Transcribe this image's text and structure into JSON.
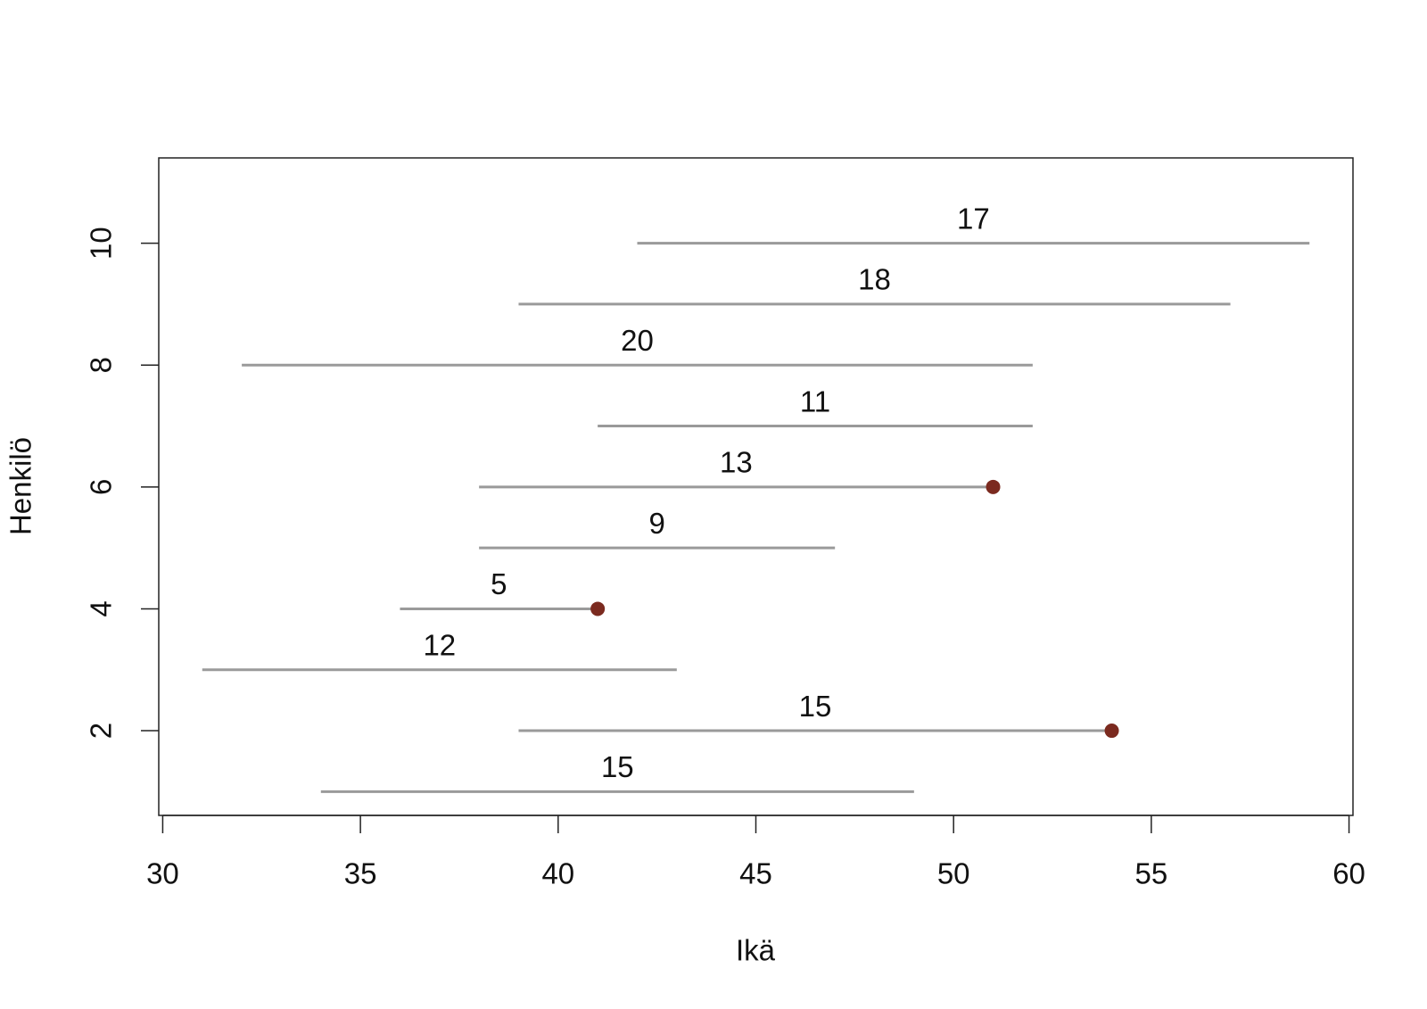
{
  "chart_data": {
    "type": "range",
    "xlabel": "Ikä",
    "ylabel": "Henkilö",
    "y": [
      1,
      2,
      3,
      4,
      5,
      6,
      7,
      8,
      9,
      10
    ],
    "start": [
      34,
      39,
      31,
      36,
      38,
      38,
      41,
      32,
      39,
      42
    ],
    "end": [
      49,
      54,
      43,
      41,
      47,
      51,
      52,
      52,
      57,
      59
    ],
    "durations": [
      15,
      15,
      12,
      5,
      9,
      13,
      11,
      20,
      18,
      17
    ],
    "event": [
      0,
      1,
      0,
      1,
      0,
      1,
      0,
      0,
      0,
      0
    ],
    "line_color": "#9a9a9a",
    "event_color": "#7b2a1f",
    "xlim": [
      29.9,
      60.1
    ],
    "xticks": [
      30,
      35,
      40,
      45,
      50,
      55,
      60
    ],
    "ylim": [
      0.61,
      11.4
    ],
    "yticks": [
      2,
      4,
      6,
      8,
      10
    ]
  }
}
